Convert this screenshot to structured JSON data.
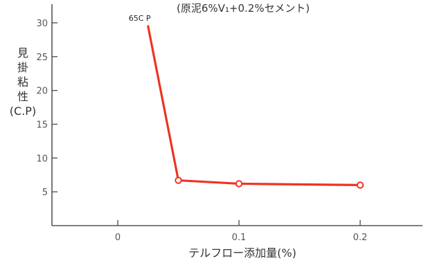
{
  "chart_data": {
    "type": "line",
    "subtitle": "(原泥6%V₁+0.2%セメント)",
    "xlabel": "テルフロー添加量(%)",
    "ylabel": "見掛粘性(C.P)",
    "x_ticks": [
      0,
      0.1,
      0.2
    ],
    "x_tick_labels": [
      "0",
      "0.1",
      "0.2"
    ],
    "y_ticks": [
      5,
      10,
      15,
      20,
      25,
      30
    ],
    "y_tick_labels": [
      "5",
      "10",
      "15",
      "20",
      "25",
      "30"
    ],
    "xlim": [
      -0.05,
      0.24
    ],
    "ylim": [
      0,
      32.5
    ],
    "grid": false,
    "series": [
      {
        "x": [
          0.025,
          0.05,
          0.1,
          0.2
        ],
        "y": [
          29.5,
          6.7,
          6.2,
          6.0
        ],
        "color": "#ee3322",
        "marker": "open-circle"
      }
    ],
    "annotations": [
      {
        "text": "65C P",
        "x": 0.025,
        "y": 29.5
      }
    ]
  }
}
